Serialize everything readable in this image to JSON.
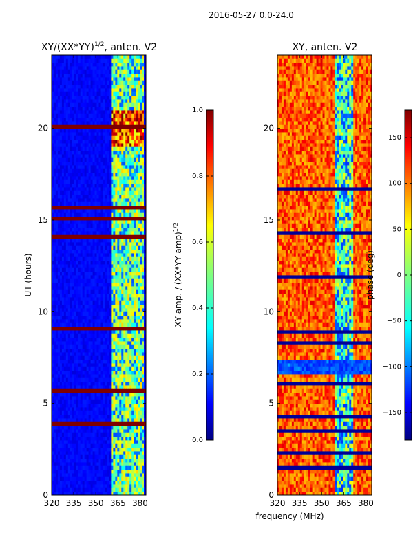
{
  "figure_title": "2016-05-27 0.0-24.0",
  "chart_data": [
    {
      "type": "heatmap",
      "title": "XY/(XX*YY)$^{1/2}$, anten. V2",
      "title_prefix": "XY/(XX*YY)",
      "title_exponent": "1/2",
      "title_suffix": ", anten. V2",
      "xlabel": "",
      "ylabel": "UT (hours)",
      "xlim": [
        320,
        384
      ],
      "ylim": [
        0,
        24
      ],
      "xticks": [
        320,
        335,
        350,
        365,
        380
      ],
      "xtick_labels": [
        "320",
        "335",
        "350",
        "365",
        "380"
      ],
      "yticks": [
        0,
        5,
        10,
        15,
        20
      ],
      "ytick_labels": [
        "0",
        "5",
        "10",
        "15",
        "20"
      ],
      "colormap": "jet",
      "colorbar": {
        "label": "XY amp. / (XX*YY amp)$^{1/2}$",
        "label_prefix": "XY amp. / (XX*YY amp)",
        "label_exponent": "1/2",
        "range": [
          0.0,
          1.0
        ],
        "ticks": [
          0.0,
          0.2,
          0.4,
          0.6,
          0.8,
          1.0
        ],
        "tick_labels": [
          "0.0",
          "0.2",
          "0.4",
          "0.6",
          "0.8",
          "1.0"
        ]
      }
    },
    {
      "type": "heatmap",
      "title": "XY, anten. V2",
      "xlabel": "frequency (MHz)",
      "ylabel": "",
      "xlim": [
        320,
        384
      ],
      "ylim": [
        0,
        24
      ],
      "xticks": [
        320,
        335,
        350,
        365,
        380
      ],
      "xtick_labels": [
        "320",
        "335",
        "350",
        "365",
        "380"
      ],
      "yticks": [
        0,
        5,
        10,
        15,
        20
      ],
      "ytick_labels": [
        "0",
        "5",
        "10",
        "15",
        "20"
      ],
      "colormap": "jet",
      "colorbar": {
        "label": "phase (deg)",
        "range": [
          -180,
          180
        ],
        "ticks": [
          -150,
          -100,
          -50,
          0,
          50,
          100,
          150
        ],
        "tick_labels": [
          "−150",
          "−100",
          "−50",
          "0",
          "50",
          "100",
          "150"
        ]
      }
    }
  ],
  "colors": {
    "jet": [
      "#00007f",
      "#0000ff",
      "#007fff",
      "#00ffff",
      "#7fff7f",
      "#ffff00",
      "#ff7f00",
      "#ff0000",
      "#7f0000"
    ]
  }
}
